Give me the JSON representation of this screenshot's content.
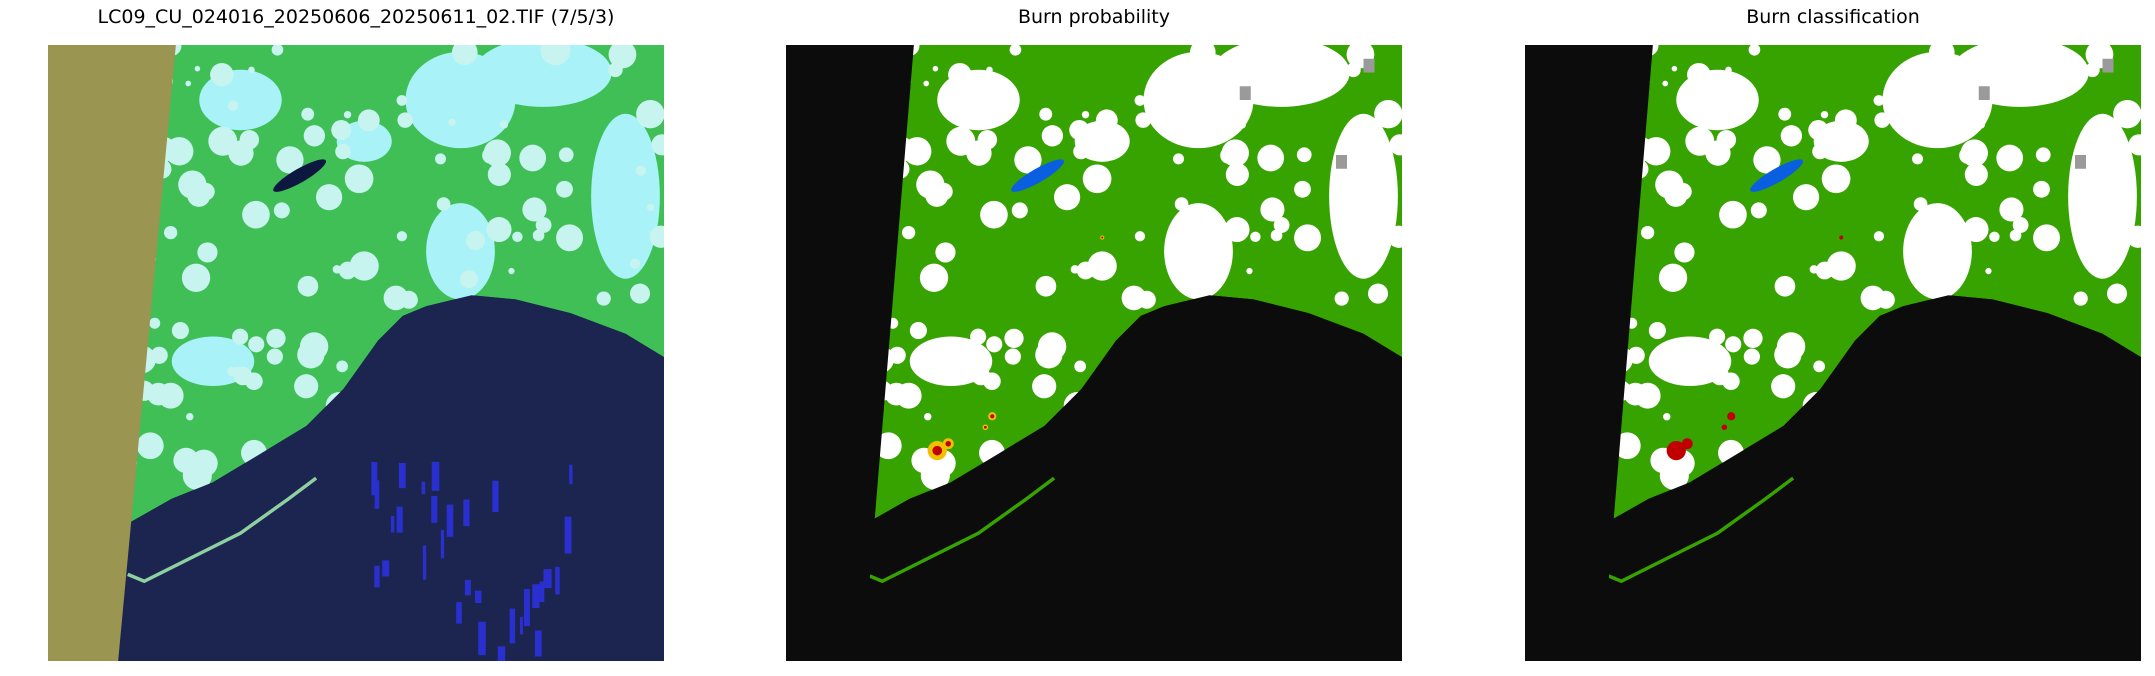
{
  "panels": [
    {
      "title": "LC09_CU_024016_20250606_20250611_02.TIF (7/5/3)",
      "kind": "false-color-composite"
    },
    {
      "title": "Burn probability",
      "kind": "probability-map"
    },
    {
      "title": "Burn classification",
      "kind": "classification-map"
    }
  ],
  "colors": {
    "nodata_fill": "#9a9550",
    "vegetation_rgb": "#3fbf55",
    "cloud_rgb": "#a8f2f8",
    "water_rgb": "#1c2550",
    "vegetation_class": "#37a300",
    "cloud_class": "#ffffff",
    "water_class": "#0c0c0c",
    "lake_class": "#0a5fe0",
    "burn_class": "#c00000",
    "cloud_shadow_class": "#9a9a9a",
    "burn_probability_high": "#f0c000"
  }
}
